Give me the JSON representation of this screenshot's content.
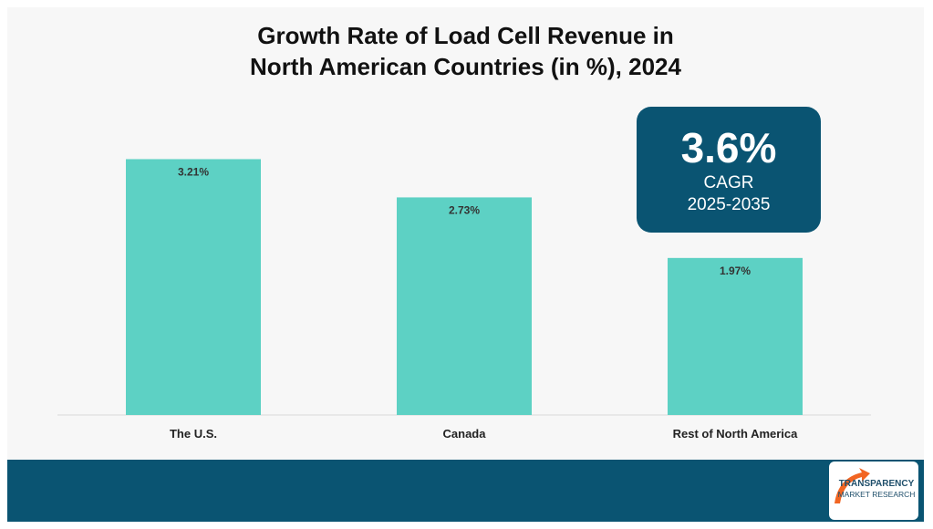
{
  "title": {
    "line1": "Growth Rate of Load Cell Revenue in",
    "line2": "North American Countries (in %), 2024"
  },
  "chart_data": {
    "type": "bar",
    "categories": [
      "The U.S.",
      "Canada",
      "Rest of North America"
    ],
    "values": [
      3.21,
      2.73,
      1.97
    ],
    "value_labels": [
      "3.21%",
      "2.73%",
      "1.97%"
    ],
    "ylim": [
      0,
      4.6
    ],
    "grid": false,
    "bar_color": "#5dd1c4",
    "axis_color": "#d9d9d9"
  },
  "callout": {
    "value": "3.6%",
    "label": "CAGR",
    "period": "2025-2035",
    "background": "#0a5472"
  },
  "footer": {
    "background": "#0a5472"
  },
  "logo": {
    "line1": "TRANSPARENCY",
    "line2": "MARKET RESEARCH",
    "accent": "#f26522",
    "text_color": "#1f4f6b"
  }
}
